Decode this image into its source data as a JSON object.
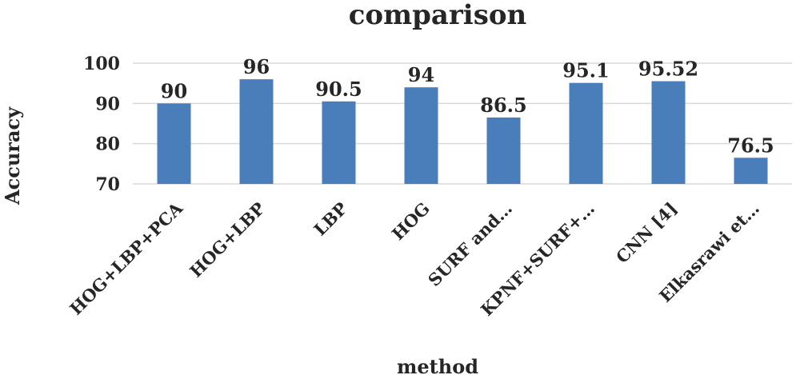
{
  "chart_data": {
    "type": "bar",
    "title": "comparison",
    "xlabel": "method",
    "ylabel": "Accuracy",
    "categories": [
      "HOG+LBP+PCA",
      "HOG+LBP",
      "LBP",
      "HOG",
      "SURF and…",
      "KPNF+SURF+…",
      "CNN [4]",
      "Elkasrawi et…"
    ],
    "values": [
      90,
      96,
      90.5,
      94,
      86.5,
      95.1,
      95.52,
      76.5
    ],
    "data_labels": [
      "90",
      "96",
      "90.5",
      "94",
      "86.5",
      "95.1",
      "95.52",
      "76.5"
    ],
    "y_ticks": [
      70,
      80,
      90,
      100
    ],
    "y_tick_labels": [
      "70",
      "80",
      "90",
      "100"
    ],
    "ylim": [
      70,
      100
    ],
    "grid": true,
    "legend": "none",
    "bar_color": "#4a7ebb",
    "gridline_color": "#d9d9d9",
    "text_color": "#262626"
  }
}
